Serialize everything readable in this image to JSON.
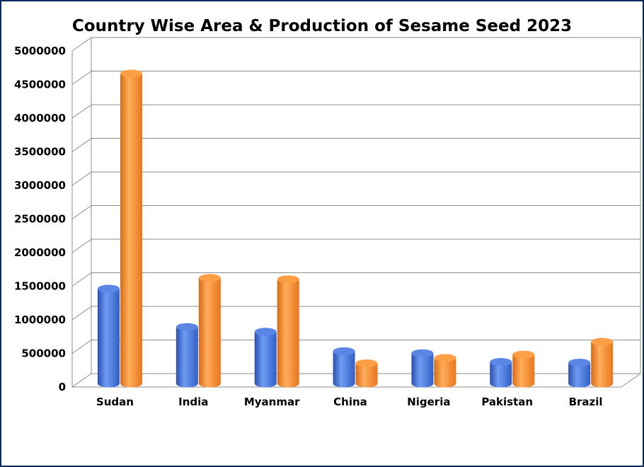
{
  "chart_data": {
    "type": "bar",
    "title": "Country Wise Area & Production of Sesame Seed 2023",
    "xlabel": "",
    "ylabel": "",
    "ylim": [
      0,
      5000000
    ],
    "yticks": [
      "0",
      "500000",
      "1000000",
      "1500000",
      "2000000",
      "2500000",
      "3000000",
      "3500000",
      "4000000",
      "4500000",
      "5000000"
    ],
    "grid": true,
    "style": "3d-cylinder",
    "categories": [
      "Sudan",
      "India",
      "Myanmar",
      "China",
      "Nigeria",
      "Pakistan",
      "Brazil"
    ],
    "series": [
      {
        "values": [
          1400000,
          830000,
          760000,
          470000,
          440000,
          310000,
          300000
        ],
        "color": "#3b6fdc"
      },
      {
        "values": [
          4600000,
          1560000,
          1540000,
          290000,
          370000,
          420000,
          610000
        ],
        "color": "#f58a2e"
      }
    ]
  }
}
